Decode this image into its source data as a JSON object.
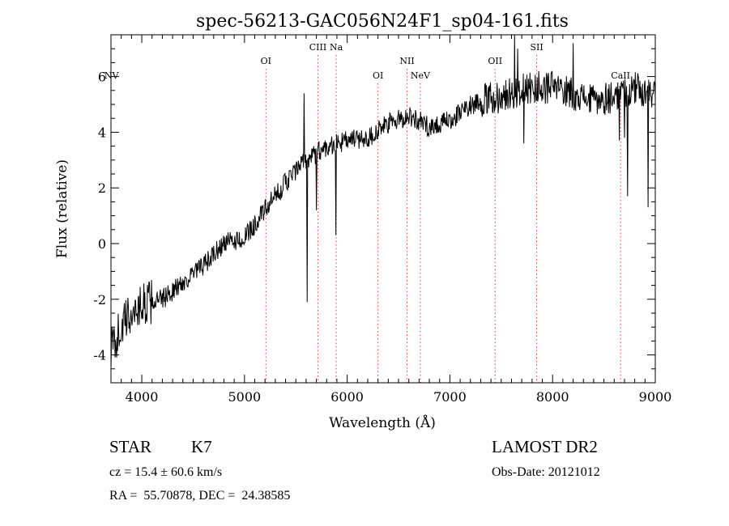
{
  "chart_data": {
    "type": "line",
    "title": "spec-56213-GAC056N24F1_sp04-161.fits",
    "xlabel": "Wavelength (Å)",
    "ylabel": "Flux (relative)",
    "xlim": [
      3700,
      9000
    ],
    "ylim": [
      -5,
      7.5
    ],
    "x_ticks": [
      4000,
      5000,
      6000,
      7000,
      8000,
      9000
    ],
    "y_ticks": [
      -4,
      -2,
      0,
      2,
      4,
      6
    ],
    "grid": false,
    "spectrum_anchors": {
      "x": [
        3700,
        3800,
        3900,
        4000,
        4200,
        4400,
        4600,
        4800,
        5000,
        5200,
        5400,
        5600,
        5800,
        6000,
        6200,
        6400,
        6600,
        6800,
        7000,
        7200,
        7400,
        7600,
        7800,
        8000,
        8200,
        8400,
        8600,
        8800,
        9000
      ],
      "y": [
        -3.8,
        -3.0,
        -2.5,
        -2.2,
        -2.0,
        -1.4,
        -0.8,
        0.0,
        0.2,
        1.2,
        2.2,
        3.0,
        3.5,
        3.7,
        3.8,
        4.3,
        4.6,
        4.2,
        4.4,
        5.0,
        5.2,
        5.4,
        5.6,
        5.6,
        5.4,
        5.1,
        5.3,
        5.6,
        5.3
      ]
    },
    "spectral_features": [
      {
        "x": 5580,
        "y": 5.4
      },
      {
        "x": 5610,
        "y": -2.1
      },
      {
        "x": 5700,
        "y": 1.2
      },
      {
        "x": 5890,
        "y": 0.3
      },
      {
        "x": 7630,
        "y": 7.5
      },
      {
        "x": 7660,
        "y": 7.0
      },
      {
        "x": 7720,
        "y": 3.6
      },
      {
        "x": 8200,
        "y": 7.2
      },
      {
        "x": 8650,
        "y": 3.7
      },
      {
        "x": 8700,
        "y": 3.8
      },
      {
        "x": 8730,
        "y": 1.7
      },
      {
        "x": 8930,
        "y": 1.3
      }
    ],
    "emission_lines": [
      {
        "name": "NV",
        "x": 3705,
        "row": "low"
      },
      {
        "name": "OI",
        "x": 5209,
        "row": "mid"
      },
      {
        "name": "CIII",
        "x": 5715,
        "row": "high"
      },
      {
        "name": "Na",
        "x": 5893,
        "row": "high"
      },
      {
        "name": "OI",
        "x": 6300,
        "row": "low"
      },
      {
        "name": "NII",
        "x": 6583,
        "row": "mid"
      },
      {
        "name": "NeV",
        "x": 6712,
        "row": "low"
      },
      {
        "name": "OII",
        "x": 7440,
        "row": "mid"
      },
      {
        "name": "SII",
        "x": 7845,
        "row": "high"
      },
      {
        "name": "CaII",
        "x": 8662,
        "row": "low"
      }
    ]
  },
  "footer": {
    "object_type": "STAR",
    "subclass": "K7",
    "survey": "LAMOST DR2",
    "redshift": "cz = 15.4 ± 60.6 km/s",
    "obs_date": "Obs-Date: 20121012",
    "coords": "RA =  55.70878, DEC =  24.38585"
  }
}
